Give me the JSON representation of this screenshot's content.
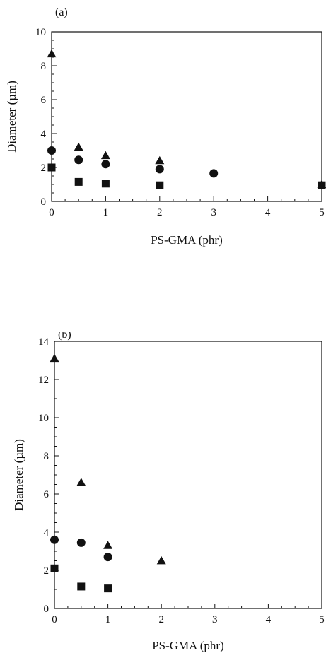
{
  "chart_data": [
    {
      "type": "scatter",
      "panel_label": "(a)",
      "xlabel": "PS-GMA (phr)",
      "ylabel": "Diameter (µm)",
      "xlim": [
        0,
        5
      ],
      "ylim": [
        0,
        10
      ],
      "xticks": [
        "0",
        "1",
        "2",
        "3",
        "4",
        "5"
      ],
      "yticks": [
        "0",
        "2",
        "4",
        "6",
        "8",
        "10"
      ],
      "grid": false,
      "series": [
        {
          "marker": "triangle",
          "x": [
            0,
            0.5,
            1,
            2,
            5
          ],
          "y": [
            8.7,
            3.2,
            2.7,
            2.4,
            1.0
          ]
        },
        {
          "marker": "circle",
          "x": [
            0,
            0.5,
            1,
            2,
            3
          ],
          "y": [
            3.0,
            2.45,
            2.2,
            1.9,
            1.65
          ]
        },
        {
          "marker": "square",
          "x": [
            0,
            0.5,
            1,
            2,
            5
          ],
          "y": [
            2.0,
            1.15,
            1.05,
            0.95,
            0.95
          ]
        }
      ]
    },
    {
      "type": "scatter",
      "panel_label": "(b)",
      "xlabel": "PS-GMA (phr)",
      "ylabel": "Diameter (µm)",
      "xlim": [
        0,
        5
      ],
      "ylim": [
        0,
        14
      ],
      "xticks": [
        "0",
        "1",
        "2",
        "3",
        "4",
        "5"
      ],
      "yticks": [
        "0",
        "2",
        "4",
        "6",
        "8",
        "10",
        "12",
        "14"
      ],
      "grid": false,
      "series": [
        {
          "marker": "triangle",
          "x": [
            0,
            0.5,
            1,
            2
          ],
          "y": [
            13.1,
            6.6,
            3.3,
            2.5
          ]
        },
        {
          "marker": "circle",
          "x": [
            0,
            0.5,
            1
          ],
          "y": [
            3.6,
            3.45,
            2.7
          ]
        },
        {
          "marker": "square",
          "x": [
            0,
            0.5,
            1
          ],
          "y": [
            2.1,
            1.15,
            1.05
          ]
        }
      ]
    }
  ]
}
